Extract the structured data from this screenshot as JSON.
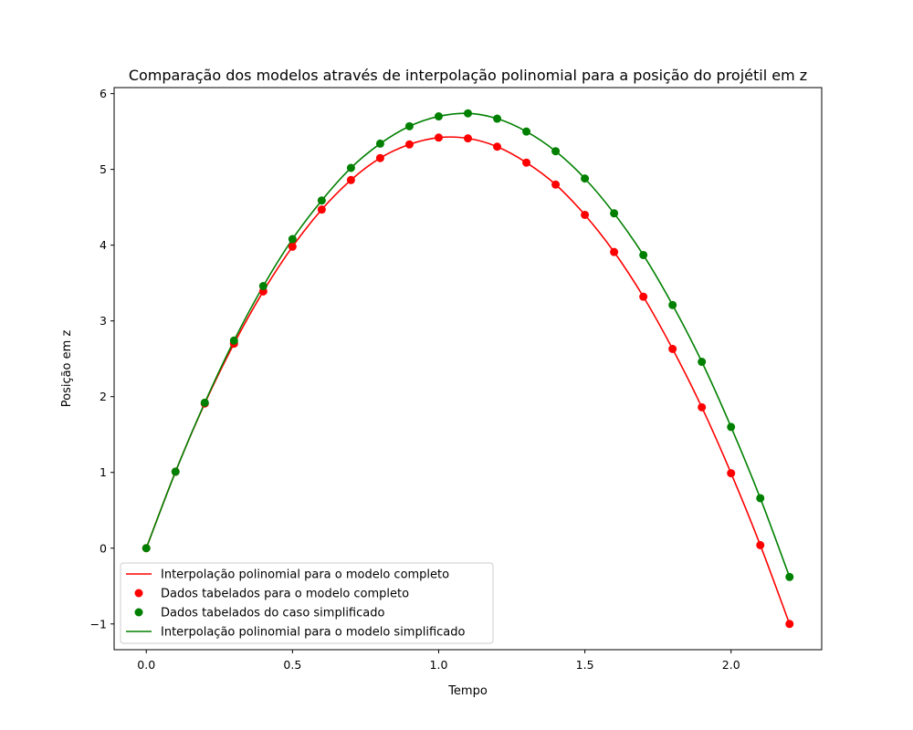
{
  "chart_data": {
    "type": "line",
    "title": "Comparação dos modelos através de interpolação polinomial para a posição do projétil em z",
    "xlabel": "Tempo",
    "ylabel": "Posição em z",
    "xlim": [
      -0.11,
      2.31
    ],
    "ylim": [
      -1.34,
      6.08
    ],
    "xticks": [
      0.0,
      0.5,
      1.0,
      1.5,
      2.0
    ],
    "xtick_labels": [
      "0.0",
      "0.5",
      "1.0",
      "1.5",
      "2.0"
    ],
    "yticks": [
      -1,
      0,
      1,
      2,
      3,
      4,
      5,
      6
    ],
    "ytick_labels": [
      "−1",
      "0",
      "1",
      "2",
      "3",
      "4",
      "5",
      "6"
    ],
    "grid": false,
    "legend_position": "lower-left",
    "x": [
      0.0,
      0.1,
      0.2,
      0.3,
      0.4,
      0.5,
      0.6,
      0.7,
      0.8,
      0.9,
      1.0,
      1.1,
      1.2,
      1.3,
      1.4,
      1.5,
      1.6,
      1.7,
      1.8,
      1.9,
      2.0,
      2.1,
      2.2
    ],
    "series": [
      {
        "name": "Interpolação polinomial para o modelo completo",
        "style": "line",
        "color": "#ff0000",
        "values": [
          0.0,
          1.01,
          1.91,
          2.7,
          3.39,
          3.98,
          4.47,
          4.86,
          5.15,
          5.33,
          5.42,
          5.41,
          5.3,
          5.09,
          4.8,
          4.4,
          3.91,
          3.32,
          2.63,
          1.86,
          0.99,
          0.04,
          -1.0
        ]
      },
      {
        "name": "Dados tabelados para o modelo completo",
        "style": "markers",
        "color": "#ff0000",
        "values": [
          0.0,
          1.01,
          1.91,
          2.7,
          3.39,
          3.98,
          4.47,
          4.86,
          5.15,
          5.33,
          5.42,
          5.41,
          5.3,
          5.09,
          4.8,
          4.4,
          3.91,
          3.32,
          2.63,
          1.86,
          0.99,
          0.04,
          -1.0
        ]
      },
      {
        "name": "Dados tabelados do caso simplificado",
        "style": "markers",
        "color": "#008000",
        "values": [
          0.0,
          1.01,
          1.92,
          2.74,
          3.46,
          4.08,
          4.59,
          5.02,
          5.34,
          5.57,
          5.7,
          5.74,
          5.67,
          5.5,
          5.24,
          4.88,
          4.42,
          3.87,
          3.21,
          2.46,
          1.6,
          0.66,
          -0.38
        ]
      },
      {
        "name": "Interpolação polinomial para o modelo simplificado",
        "style": "line",
        "color": "#008000",
        "values": [
          0.0,
          1.01,
          1.92,
          2.74,
          3.46,
          4.08,
          4.59,
          5.02,
          5.34,
          5.57,
          5.7,
          5.74,
          5.67,
          5.5,
          5.24,
          4.88,
          4.42,
          3.87,
          3.21,
          2.46,
          1.6,
          0.66,
          -0.38
        ]
      }
    ]
  }
}
